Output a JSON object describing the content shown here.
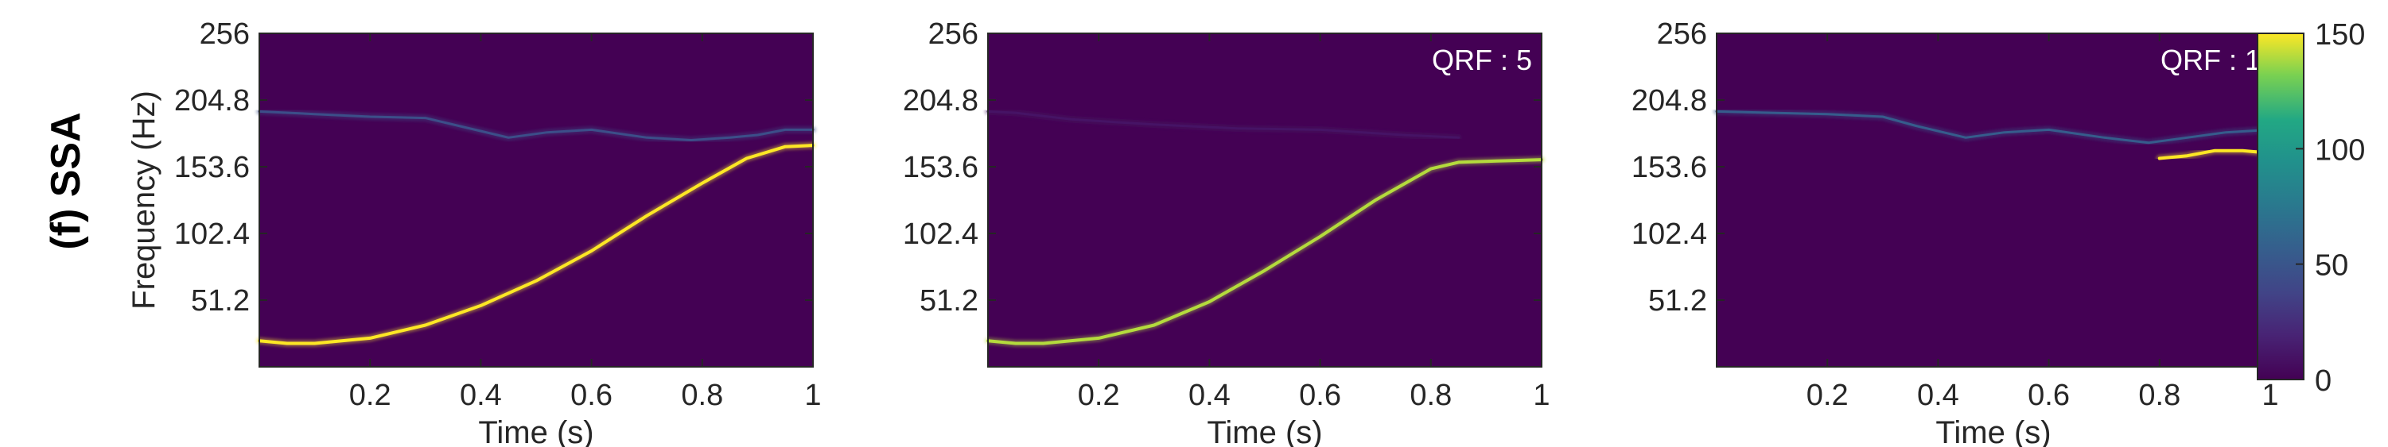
{
  "figure": {
    "row_label": "(f) SSA",
    "ylabel": "Frequency (Hz)",
    "xlabel": "Time (s)"
  },
  "chart_data": [
    {
      "type": "heatmap",
      "title": "",
      "annotation": "",
      "xlabel": "Time (s)",
      "ylabel": "Frequency (Hz)",
      "xlim": [
        0,
        1
      ],
      "ylim": [
        0,
        256
      ],
      "xticks": [
        0.2,
        0.4,
        0.6,
        0.8,
        1
      ],
      "xticklabels": [
        "0.2",
        "0.4",
        "0.6",
        "0.8",
        "1"
      ],
      "yticks": [
        51.2,
        102.4,
        153.6,
        204.8,
        256
      ],
      "yticklabels": [
        "51.2",
        "102.4",
        "153.6",
        "204.8",
        "256"
      ],
      "background_color": "#440154",
      "series": [
        {
          "points": [
            [
              0.0,
              196
            ],
            [
              0.1,
              194
            ],
            [
              0.2,
              192
            ],
            [
              0.3,
              191
            ],
            [
              0.36,
              185
            ],
            [
              0.45,
              176
            ],
            [
              0.52,
              180
            ],
            [
              0.6,
              182
            ],
            [
              0.7,
              176
            ],
            [
              0.78,
              174
            ],
            [
              0.85,
              176
            ],
            [
              0.9,
              178
            ],
            [
              0.95,
              182
            ],
            [
              1.0,
              182
            ]
          ],
          "intensity": 45
        },
        {
          "points": [
            [
              0.0,
              20
            ],
            [
              0.05,
              18
            ],
            [
              0.1,
              18
            ],
            [
              0.2,
              22
            ],
            [
              0.3,
              32
            ],
            [
              0.4,
              47
            ],
            [
              0.5,
              66
            ],
            [
              0.6,
              89
            ],
            [
              0.7,
              116
            ],
            [
              0.8,
              141
            ],
            [
              0.88,
              160
            ],
            [
              0.95,
              169
            ],
            [
              1.0,
              170
            ]
          ],
          "intensity": 150
        }
      ]
    },
    {
      "type": "heatmap",
      "title": "",
      "annotation": "QRF : 5",
      "xlabel": "Time (s)",
      "ylabel": "",
      "xlim": [
        0,
        1
      ],
      "ylim": [
        0,
        256
      ],
      "xticks": [
        0.2,
        0.4,
        0.6,
        0.8,
        1
      ],
      "xticklabels": [
        "0.2",
        "0.4",
        "0.6",
        "0.8",
        "1"
      ],
      "yticks": [
        51.2,
        102.4,
        153.6,
        204.8,
        256
      ],
      "yticklabels": [
        "51.2",
        "102.4",
        "153.6",
        "204.8",
        "256"
      ],
      "background_color": "#440154",
      "series": [
        {
          "points": [
            [
              0.0,
              20
            ],
            [
              0.05,
              18
            ],
            [
              0.1,
              18
            ],
            [
              0.2,
              22
            ],
            [
              0.3,
              32
            ],
            [
              0.4,
              50
            ],
            [
              0.5,
              74
            ],
            [
              0.6,
              100
            ],
            [
              0.7,
              128
            ],
            [
              0.8,
              152
            ],
            [
              0.85,
              157
            ],
            [
              0.92,
              158
            ],
            [
              1.0,
              159
            ]
          ],
          "intensity": 140
        },
        {
          "points": [
            [
              0.0,
              196
            ],
            [
              0.05,
              195
            ],
            [
              0.15,
              190
            ],
            [
              0.3,
              186
            ],
            [
              0.45,
              183
            ],
            [
              0.6,
              182
            ],
            [
              0.75,
              178
            ],
            [
              0.85,
              176
            ]
          ],
          "intensity": 10
        }
      ]
    },
    {
      "type": "heatmap",
      "title": "",
      "annotation": "QRF : 1",
      "xlabel": "Time (s)",
      "ylabel": "",
      "xlim": [
        0,
        1
      ],
      "ylim": [
        0,
        256
      ],
      "xticks": [
        0.2,
        0.4,
        0.6,
        0.8,
        1
      ],
      "xticklabels": [
        "0.2",
        "0.4",
        "0.6",
        "0.8",
        "1"
      ],
      "yticks": [
        51.2,
        102.4,
        153.6,
        204.8,
        256
      ],
      "yticklabels": [
        "51.2",
        "102.4",
        "153.6",
        "204.8",
        "256"
      ],
      "background_color": "#440154",
      "series": [
        {
          "points": [
            [
              0.0,
              196
            ],
            [
              0.1,
              195
            ],
            [
              0.2,
              194
            ],
            [
              0.3,
              192
            ],
            [
              0.36,
              185
            ],
            [
              0.45,
              176
            ],
            [
              0.52,
              180
            ],
            [
              0.6,
              182
            ],
            [
              0.7,
              176
            ],
            [
              0.78,
              172
            ],
            [
              0.85,
              176
            ],
            [
              0.92,
              180
            ],
            [
              1.0,
              182
            ]
          ],
          "intensity": 55
        },
        {
          "points": [
            [
              0.8,
              160
            ],
            [
              0.85,
              162
            ],
            [
              0.9,
              166
            ],
            [
              0.95,
              166
            ],
            [
              1.0,
              164
            ]
          ],
          "intensity": 150
        }
      ]
    }
  ],
  "colorbar": {
    "colormap": "viridis",
    "min": 0,
    "max": 150,
    "ticks": [
      0,
      50,
      100,
      150
    ],
    "ticklabels": [
      "0",
      "50",
      "100",
      "150"
    ]
  }
}
